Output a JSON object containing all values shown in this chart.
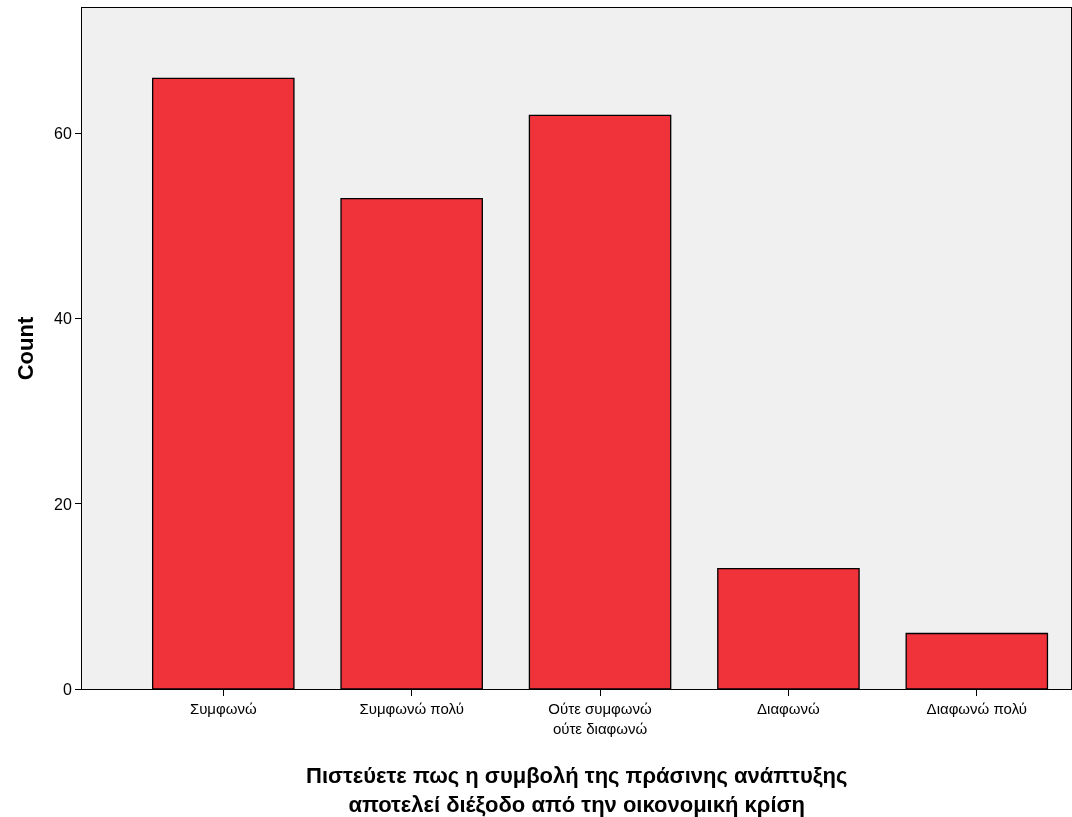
{
  "chart_data": {
    "type": "bar",
    "xlabel": "Πιστεύετε πως η συμβολή της πράσινης ανάπτυξης αποτελεί διέξοδο από την οικονομική κρίση",
    "ylabel": "Count",
    "categories": [
      "Συμφωνώ",
      "Συμφωνώ πολύ",
      "Ούτε συμφωνώ ούτε διαφωνώ",
      "Διαφωνώ",
      "Διαφωνώ πολύ"
    ],
    "values": [
      66,
      53,
      62,
      13,
      6
    ],
    "color": "#f0323a",
    "ylim": [
      0,
      73.6
    ],
    "yticks": [
      0,
      20,
      40,
      60
    ],
    "grid": false,
    "legend": false
  }
}
